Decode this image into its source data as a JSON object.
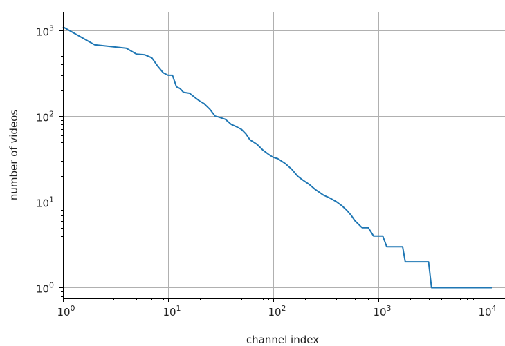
{
  "chart_data": {
    "type": "line",
    "title": "",
    "xlabel": "channel index",
    "ylabel": "number of videos",
    "x_scale": "log",
    "y_scale": "log",
    "xlim": [
      1,
      16000
    ],
    "ylim": [
      0.75,
      1650
    ],
    "grid": true,
    "line_color": "#1f77b4",
    "x_ticks": [
      {
        "value": 1,
        "label": "10",
        "exp": "0"
      },
      {
        "value": 10,
        "label": "10",
        "exp": "1"
      },
      {
        "value": 100,
        "label": "10",
        "exp": "2"
      },
      {
        "value": 1000,
        "label": "10",
        "exp": "3"
      },
      {
        "value": 10000,
        "label": "10",
        "exp": "4"
      }
    ],
    "y_ticks": [
      {
        "value": 1,
        "label": "10",
        "exp": "0"
      },
      {
        "value": 10,
        "label": "10",
        "exp": "1"
      },
      {
        "value": 100,
        "label": "10",
        "exp": "2"
      },
      {
        "value": 1000,
        "label": "10",
        "exp": "3"
      }
    ],
    "series": [
      {
        "x": [
          1,
          2,
          4,
          5,
          6,
          7,
          8,
          9,
          10,
          11,
          12,
          13,
          14,
          16,
          18,
          20,
          22,
          25,
          28,
          30,
          35,
          40,
          45,
          50,
          55,
          60,
          70,
          80,
          90,
          100,
          110,
          130,
          150,
          170,
          190,
          220,
          250,
          300,
          350,
          400,
          450,
          500,
          550,
          600,
          700,
          800,
          900,
          1100,
          1200,
          1700,
          1800,
          3000,
          3200,
          12000
        ],
        "y": [
          1100,
          680,
          620,
          530,
          520,
          480,
          380,
          320,
          300,
          300,
          220,
          210,
          190,
          185,
          165,
          150,
          140,
          120,
          100,
          98,
          92,
          80,
          75,
          70,
          62,
          53,
          47,
          40,
          36,
          33,
          32,
          28,
          24,
          20,
          18,
          16,
          14,
          12,
          11,
          10,
          9,
          8,
          7,
          6,
          5,
          5,
          4,
          4,
          3,
          3,
          2,
          2,
          1,
          1
        ]
      }
    ]
  }
}
